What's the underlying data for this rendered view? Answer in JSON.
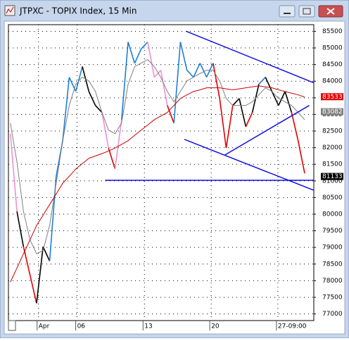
{
  "chart_data": {
    "type": "line",
    "title": "JTPXC - TOPIX Index, 15 Min",
    "x": [
      0,
      1,
      2,
      3,
      4,
      5,
      6,
      7,
      8,
      9,
      10,
      11,
      12,
      13,
      14,
      15,
      16,
      17,
      18,
      19,
      20,
      21,
      22,
      23,
      24,
      25,
      26,
      27,
      28,
      29,
      30,
      31,
      32,
      33,
      34,
      35,
      36,
      37,
      38,
      39,
      40,
      41,
      42,
      43,
      44,
      45
    ],
    "series": [
      {
        "values": [
          82420,
          80080,
          79020,
          78170,
          77320,
          79020,
          78590,
          81140,
          82210,
          84120,
          83690,
          84440,
          83690,
          83270,
          83060,
          81990,
          81360,
          82840,
          85180,
          84540,
          84970,
          85180,
          84120,
          84330,
          83270,
          82740,
          85180,
          84330,
          84120,
          84540,
          84120,
          84540,
          83480,
          81990,
          83270,
          83480,
          82630,
          83060,
          83910,
          84120,
          83690,
          83270,
          83690,
          83060,
          82210,
          81230
        ],
        "colors": [
          "#f08fd8",
          "#f08fd8",
          "#000000",
          "#e00000",
          "#e00000",
          "#000000",
          "#000000",
          "#1e7fd8",
          "#1e7fd8",
          "#1e7fd8",
          "#1e7fd8",
          "#1e7fd8",
          "#000000",
          "#000000",
          "#000000",
          "#f08fd8",
          "#e00000",
          "#f08fd8",
          "#1e7fd8",
          "#1e7fd8",
          "#1e7fd8",
          "#1e7fd8",
          "#f08fd8",
          "#f08fd8",
          "#f08fd8",
          "#e00000",
          "#1e7fd8",
          "#1e7fd8",
          "#1e7fd8",
          "#1e7fd8",
          "#1e7fd8",
          "#1e7fd8",
          "#e00000",
          "#e00000",
          "#e00000",
          "#000000",
          "#000000",
          "#e00000",
          "#000000",
          "#1e7fd8",
          "#000000",
          "#000000",
          "#000000",
          "#000000",
          "#e00000",
          "#e00000"
        ]
      },
      {
        "color": "#808080",
        "values": [
          82740,
          81570,
          80080,
          79230,
          78810,
          78910,
          79660,
          80930,
          82210,
          83270,
          83910,
          84120,
          84010,
          83690,
          83060,
          82530,
          82420,
          82740,
          83910,
          84440,
          84540,
          84650,
          84440,
          84120,
          83690,
          83380,
          83690,
          84010,
          84120,
          84230,
          84330,
          84330,
          84010,
          83480,
          83270,
          83270,
          83270,
          83380,
          83590,
          83800,
          83690,
          83480,
          83380,
          83270,
          83060,
          82840
        ]
      },
      {
        "color": "#cc0000",
        "values": [
          77960,
          78380,
          78810,
          79230,
          79660,
          79970,
          80290,
          80610,
          80930,
          81140,
          81360,
          81520,
          81680,
          81750,
          81820,
          81900,
          81990,
          82100,
          82210,
          82370,
          82530,
          82680,
          82840,
          82950,
          83060,
          83270,
          83480,
          83590,
          83690,
          83740,
          83800,
          83800,
          83800,
          83770,
          83740,
          83770,
          83800,
          83830,
          83860,
          83830,
          83800,
          83740,
          83690,
          83640,
          83590,
          83520
        ]
      }
    ],
    "trend_lines": [
      {
        "color": "#1010e0",
        "x": [
          26.9,
          46.4
        ],
        "y": [
          85500,
          83950
        ]
      },
      {
        "color": "#1010e0",
        "x": [
          26.6,
          46.4
        ],
        "y": [
          82250,
          80720
        ]
      },
      {
        "color": "#1010e0",
        "x": [
          32.8,
          45.7
        ],
        "y": [
          81780,
          83270
        ]
      },
      {
        "color": "#1010e0",
        "x": [
          14.5,
          46.4
        ],
        "y": [
          81020,
          81020
        ]
      }
    ],
    "price_tags": [
      {
        "value": 83533,
        "color": "#e00000"
      },
      {
        "value": 83082,
        "color": "#808080"
      },
      {
        "value": 81133,
        "color": "#000000"
      }
    ],
    "xlim": [
      -0.3,
      46.4
    ],
    "xticks": [
      {
        "value": 4.3,
        "label": "Apr"
      },
      {
        "value": 10.2,
        "label": "06"
      },
      {
        "value": 20.5,
        "label": "13"
      },
      {
        "value": 30.7,
        "label": "20"
      },
      {
        "value": 40.9,
        "label": "27-09:00"
      }
    ],
    "ylim": [
      76800,
      85700
    ],
    "yticks": [
      77000,
      77500,
      78000,
      78500,
      79000,
      79500,
      80000,
      80500,
      81000,
      81500,
      82000,
      82500,
      83000,
      83500,
      84000,
      84500,
      85000,
      85500
    ],
    "grid": true
  }
}
